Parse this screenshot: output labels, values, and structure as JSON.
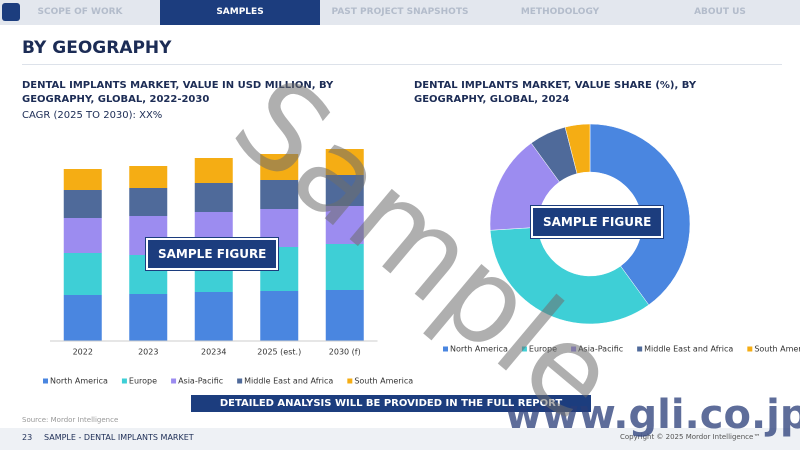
{
  "nav": [
    "SCOPE OF WORK",
    "SAMPLES",
    "PAST PROJECT SNAPSHOTS",
    "METHODOLOGY",
    "ABOUT US"
  ],
  "page_title": "BY GEOGRAPHY",
  "chart_data": [
    {
      "type": "bar",
      "stacked": true,
      "title": "DENTAL IMPLANTS MARKET, VALUE IN USD MILLION, BY GEOGRAPHY, GLOBAL, 2022-2030",
      "subtitle": "CAGR (2025 TO 2030): XX%",
      "annotation": "SAMPLE FIGURE",
      "categories": [
        "2022",
        "2023",
        "20234",
        "2025 (est.)",
        "2030 (f)"
      ],
      "series": [
        {
          "name": "North America",
          "color": "#4a86e0",
          "values": [
            46,
            47,
            49,
            50,
            51
          ]
        },
        {
          "name": "Europe",
          "color": "#3ecfd6",
          "values": [
            42,
            39,
            37,
            44,
            46
          ]
        },
        {
          "name": "Asia-Pacific",
          "color": "#9c8cf0",
          "values": [
            35,
            39,
            43,
            38,
            38
          ]
        },
        {
          "name": "Middle East and Africa",
          "color": "#4f6a9a",
          "values": [
            28,
            28,
            29,
            29,
            31
          ]
        },
        {
          "name": "South America",
          "color": "#f5ad14",
          "values": [
            21,
            22,
            25,
            26,
            26
          ]
        }
      ]
    },
    {
      "type": "pie",
      "donut": true,
      "title": "DENTAL IMPLANTS MARKET, VALUE SHARE (%), BY GEOGRAPHY, GLOBAL, 2024",
      "annotation": "SAMPLE FIGURE",
      "categories": [
        "North America",
        "Europe",
        "Asia-Pacific",
        "Middle East and Africa",
        "South America"
      ],
      "values": [
        40,
        34,
        16,
        6,
        4
      ],
      "colors": [
        "#4a86e0",
        "#3ecfd6",
        "#9c8cf0",
        "#4f6a9a",
        "#f5ad14"
      ]
    }
  ],
  "watermark": "Sample",
  "banner": "DETAILED ANALYSIS WILL BE PROVIDED IN THE FULL REPORT",
  "source": "Source: Mordor Intelligence",
  "footer": {
    "page": "23",
    "label": "SAMPLE - DENTAL IMPLANTS MARKET",
    "copyright": "Copyright © 2025 Mordor Intelligence™"
  },
  "site_watermark": "www.gli.co.jp"
}
